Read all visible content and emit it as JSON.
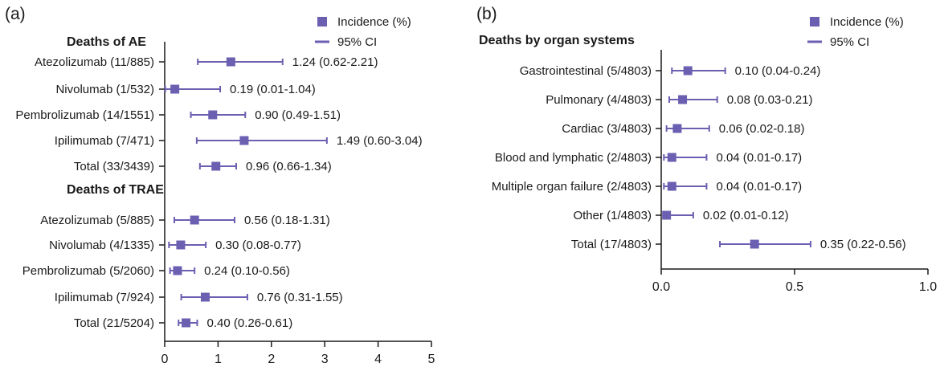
{
  "colors": {
    "marker": "#6a5fb0",
    "axis": "#1a1a1a"
  },
  "chart_data": [
    {
      "type": "forest",
      "panel": "(a)",
      "legend": {
        "point": "Incidence (%)",
        "ci": "95% CI",
        "placement": "top-right"
      },
      "xlim": [
        0,
        5
      ],
      "xticks": [
        "0",
        "1",
        "2",
        "3",
        "4",
        "5"
      ],
      "groups": [
        {
          "title": "Deaths of AE",
          "rows": [
            {
              "label": "Atezolizumab (11/885)",
              "value": 1.24,
              "lo": 0.62,
              "hi": 2.21,
              "text": "1.24 (0.62-2.21)"
            },
            {
              "label": "Nivolumab (1/532)",
              "value": 0.19,
              "lo": 0.01,
              "hi": 1.04,
              "text": "0.19 (0.01-1.04)"
            },
            {
              "label": "Pembrolizumab (14/1551)",
              "value": 0.9,
              "lo": 0.49,
              "hi": 1.51,
              "text": "0.90 (0.49-1.51)"
            },
            {
              "label": "Ipilimumab (7/471)",
              "value": 1.49,
              "lo": 0.6,
              "hi": 3.04,
              "text": "1.49 (0.60-3.04)"
            },
            {
              "label": "Total (33/3439)",
              "value": 0.96,
              "lo": 0.66,
              "hi": 1.34,
              "text": "0.96 (0.66-1.34)"
            }
          ]
        },
        {
          "title": "Deaths of TRAE",
          "rows": [
            {
              "label": "Atezolizumab (5/885)",
              "value": 0.56,
              "lo": 0.18,
              "hi": 1.31,
              "text": "0.56 (0.18-1.31)"
            },
            {
              "label": "Nivolumab (4/1335)",
              "value": 0.3,
              "lo": 0.08,
              "hi": 0.77,
              "text": "0.30 (0.08-0.77)"
            },
            {
              "label": "Pembrolizumab (5/2060)",
              "value": 0.24,
              "lo": 0.1,
              "hi": 0.56,
              "text": "0.24 (0.10-0.56)"
            },
            {
              "label": "Ipilimumab (7/924)",
              "value": 0.76,
              "lo": 0.31,
              "hi": 1.55,
              "text": "0.76 (0.31-1.55)"
            },
            {
              "label": "Total (21/5204)",
              "value": 0.4,
              "lo": 0.26,
              "hi": 0.61,
              "text": "0.40 (0.26-0.61)"
            }
          ]
        }
      ]
    },
    {
      "type": "forest",
      "panel": "(b)",
      "legend": {
        "point": "Incidence (%)",
        "ci": "95% CI",
        "placement": "top-right"
      },
      "xlim": [
        0,
        1
      ],
      "xticks": [
        "0.0",
        "0.5",
        "1.0"
      ],
      "groups": [
        {
          "title": "Deaths by organ systems",
          "rows": [
            {
              "label": "Gastrointestinal (5/4803)",
              "value": 0.1,
              "lo": 0.04,
              "hi": 0.24,
              "text": "0.10 (0.04-0.24)"
            },
            {
              "label": "Pulmonary (4/4803)",
              "value": 0.08,
              "lo": 0.03,
              "hi": 0.21,
              "text": "0.08 (0.03-0.21)"
            },
            {
              "label": "Cardiac (3/4803)",
              "value": 0.06,
              "lo": 0.02,
              "hi": 0.18,
              "text": "0.06 (0.02-0.18)"
            },
            {
              "label": "Blood and lymphatic (2/4803)",
              "value": 0.04,
              "lo": 0.01,
              "hi": 0.17,
              "text": "0.04 (0.01-0.17)"
            },
            {
              "label": "Multiple organ failure (2/4803)",
              "value": 0.04,
              "lo": 0.01,
              "hi": 0.17,
              "text": "0.04 (0.01-0.17)"
            },
            {
              "label": "Other (1/4803)",
              "value": 0.02,
              "lo": 0.01,
              "hi": 0.12,
              "text": "0.02 (0.01-0.12)"
            },
            {
              "label": "Total (17/4803)",
              "value": 0.35,
              "lo": 0.22,
              "hi": 0.56,
              "text": "0.35 (0.22-0.56)"
            }
          ]
        }
      ]
    }
  ]
}
